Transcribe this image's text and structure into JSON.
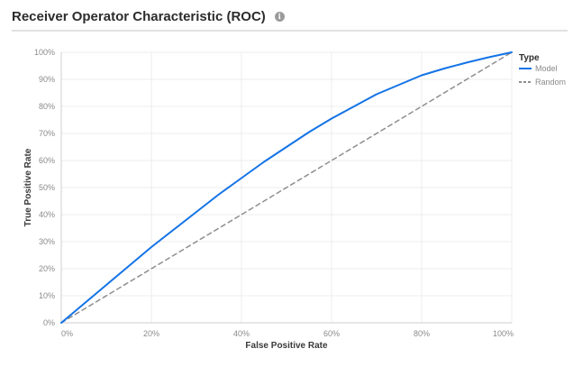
{
  "header": {
    "title": "Receiver Operator Characteristic (ROC)",
    "info_icon": "info-icon"
  },
  "colors": {
    "model": "#1473e6",
    "random": "#8e8e8e",
    "grid": "#ececec",
    "axis": "#cfcfcf"
  },
  "chart_data": {
    "type": "line",
    "xlabel": "False Positive Rate",
    "ylabel": "True Positive Rate",
    "xlim": [
      0,
      1
    ],
    "ylim": [
      0,
      1
    ],
    "x_ticks": [
      0,
      0.2,
      0.4,
      0.6,
      0.8,
      1.0
    ],
    "x_tick_labels": [
      "0%",
      "20%",
      "40%",
      "60%",
      "80%",
      "100%"
    ],
    "y_ticks": [
      0,
      0.1,
      0.2,
      0.3,
      0.4,
      0.5,
      0.6,
      0.7,
      0.8,
      0.9,
      1.0
    ],
    "y_tick_labels": [
      "0%",
      "10%",
      "20%",
      "30%",
      "40%",
      "50%",
      "60%",
      "70%",
      "80%",
      "90%",
      "100%"
    ],
    "grid": true,
    "legend": {
      "title": "Type",
      "placement": "top-right"
    },
    "series": [
      {
        "name": "Model",
        "style": "solid",
        "x": [
          0,
          0.05,
          0.1,
          0.15,
          0.2,
          0.25,
          0.3,
          0.35,
          0.4,
          0.45,
          0.5,
          0.55,
          0.6,
          0.65,
          0.7,
          0.75,
          0.8,
          0.85,
          0.9,
          0.95,
          1.0
        ],
        "y": [
          0,
          0.07,
          0.14,
          0.21,
          0.28,
          0.345,
          0.41,
          0.475,
          0.535,
          0.595,
          0.65,
          0.705,
          0.755,
          0.8,
          0.845,
          0.88,
          0.915,
          0.94,
          0.962,
          0.982,
          1.0
        ]
      },
      {
        "name": "Random",
        "style": "dashed",
        "x": [
          0,
          1
        ],
        "y": [
          0,
          1
        ]
      }
    ]
  }
}
